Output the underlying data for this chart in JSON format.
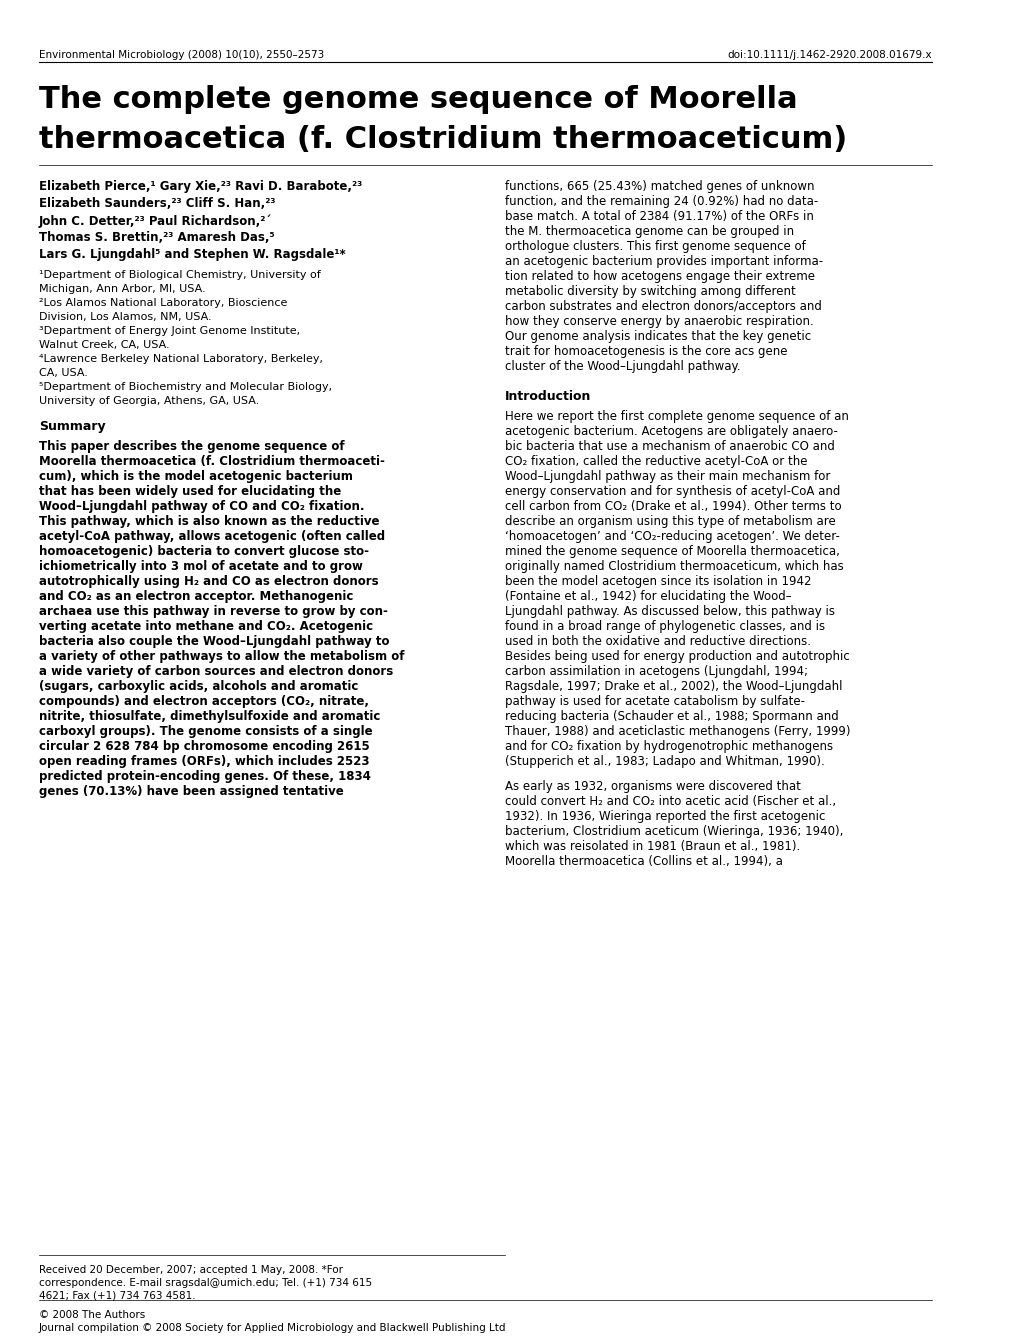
{
  "bg_color": "#ffffff",
  "header_left": "Environmental Microbiology (2008) 10(10), 2550–2573",
  "header_right": "doi:10.1111/j.1462-2920.2008.01679.x",
  "title_line1": "The complete genome sequence of Moorella",
  "title_line2": "thermoacetica (f. Clostridium thermoaceticum)",
  "authors_left": [
    "Elizabeth Pierce,¹ Gary Xie,²³ Ravi D. Barabote,²³",
    "Elizabeth Saunders,²³ Cliff S. Han,²³",
    "John C. Detter,²³ Paul Richardson,²´",
    "Thomas S. Brettin,²³ Amaresh Das,⁵",
    "Lars G. Ljungdahl⁵ and Stephen W. Ragsdale¹*"
  ],
  "affiliations": [
    "¹Department of Biological Chemistry, University of Michigan, Ann Arbor, MI, USA.",
    "²Los Alamos National Laboratory, Bioscience Division, Los Alamos, NM, USA.",
    "³Department of Energy Joint Genome Institute, Walnut Creek, CA, USA.",
    "⁴Lawrence Berkeley National Laboratory, Berkeley, CA, USA.",
    "⁵Department of Biochemistry and Molecular Biology, University of Georgia, Athens, GA, USA."
  ],
  "summary_heading": "Summary",
  "summary_text": "This paper describes the genome sequence of Moorella thermoacetica (f. Clostridium thermoaceticum), which is the model acetogenic bacterium that has been widely used for elucidating the Wood–Ljungdahl pathway of CO and CO₂ fixation. This pathway, which is also known as the reductive acetyl-CoA pathway, allows acetogenic (often called homoacetogenic) bacteria to convert glucose stoichiometrically into 3 mol of acetate and to grow autotrophically using H₂ and CO as electron donors and CO₂ as an electron acceptor. Methanogenic archaea use this pathway in reverse to grow by converting acetate into methane and CO₂. Acetogenic bacteria also couple the Wood–Ljungdahl pathway to a variety of other pathways to allow the metabolism of a wide variety of carbon sources and electron donors (sugars, carboxylic acids, alcohols and aromatic compounds) and electron acceptors (CO₂, nitrate, nitrite, thiosulfate, dimethylsulfoxide and aromatic carboxyl groups). The genome consists of a single circular 2 628 784 bp chromosome encoding 2615 open reading frames (ORFs), which includes 2523 predicted protein-encoding genes. Of these, 1834 genes (70.13%) have been assigned tentative",
  "abstract_right": "functions, 665 (25.43%) matched genes of unknown function, and the remaining 24 (0.92%) had no database match. A total of 2384 (91.17%) of the ORFs in the M. thermoacetica genome can be grouped in orthologue clusters. This first genome sequence of an acetogenic bacterium provides important information related to how acetogens engage their extreme metabolic diversity by switching among different carbon substrates and electron donors/acceptors and how they conserve energy by anaerobic respiration. Our genome analysis indicates that the key genetic trait for homoacetogenesis is the core acs gene cluster of the Wood–Ljungdahl pathway.",
  "intro_heading": "Introduction",
  "intro_text": "Here we report the first complete genome sequence of an acetogenic bacterium. Acetogens are obligately anaerobic bacteria that use a mechanism of anaerobic CO and CO₂ fixation, called the reductive acetyl-CoA or the Wood–Ljungdahl pathway as their main mechanism for energy conservation and for synthesis of acetyl-CoA and cell carbon from CO₂ (Drake et al., 1994). Other terms to describe an organism using this type of metabolism are ‘homoacetogen’ and ‘CO₂-reducing acetogen’. We determined the genome sequence of Moorella thermoacetica, originally named Clostridium thermoaceticum, which has been the model acetogen since its isolation in 1942 (Fontaine et al., 1942) for elucidating the Wood–Ljungdahl pathway. As discussed below, this pathway is found in a broad range of phylogenetic classes, and is used in both the oxidative and reductive directions. Besides being used for energy production and autotrophic carbon assimilation in acetogens (Ljungdahl, 1994; Ragsdale, 1997; Drake et al., 2002), the Wood–Ljungdahl pathway is used for acetate catabolism by sulfate-reducing bacteria (Schauder et al., 1988; Spormann and Thauer, 1988) and aceticlastic methanogens (Ferry, 1999) and for CO₂ fixation by hydrogenotrophic methanogens (Stupperich et al., 1983; Ladapo and Whitman, 1990).",
  "intro_text2": "As early as 1932, organisms were discovered that could convert H₂ and CO₂ into acetic acid (Fischer et al., 1932). In 1936, Wieringa reported the first acetogenic bacterium, Clostridium aceticum (Wieringa, 1936; 1940), which was reisolated in 1981 (Braun et al., 1981). Moorella thermoacetica (Collins et al., 1994), a",
  "footnote1": "Received 20 December, 2007; accepted 1 May, 2008. *For correspondence. E-mail sragsdal@umich.edu; Tel. (+1) 734 615 4621; Fax (+1) 734 763 4581.",
  "footnote2": "© 2008 The Authors",
  "footnote3": "Journal compilation © 2008 Society for Applied Microbiology and Blackwell Publishing Ltd"
}
